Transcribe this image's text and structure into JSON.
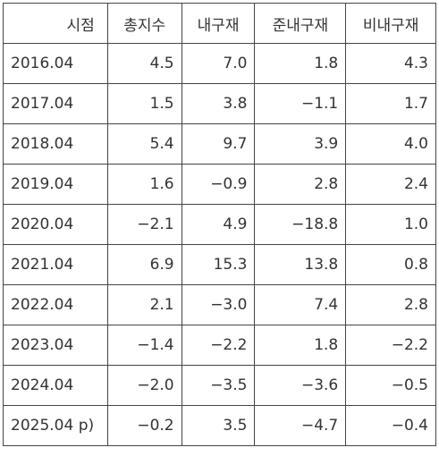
{
  "table": {
    "header": [
      "시점",
      "총지수",
      "내구재",
      "준내구재",
      "비내구재"
    ],
    "rows": [
      [
        "2016.04",
        "4.5",
        "7.0",
        "1.8",
        "4.3"
      ],
      [
        "2017.04",
        "1.5",
        "3.8",
        "−1.1",
        "1.7"
      ],
      [
        "2018.04",
        "5.4",
        "9.7",
        "3.9",
        "4.0"
      ],
      [
        "2019.04",
        "1.6",
        "−0.9",
        "2.8",
        "2.4"
      ],
      [
        "2020.04",
        "−2.1",
        "4.9",
        "−18.8",
        "1.0"
      ],
      [
        "2021.04",
        "6.9",
        "15.3",
        "13.8",
        "0.8"
      ],
      [
        "2022.04",
        "2.1",
        "−3.0",
        "7.4",
        "2.8"
      ],
      [
        "2023.04",
        "−1.4",
        "−2.2",
        "1.8",
        "−2.2"
      ],
      [
        "2024.04",
        "−2.0",
        "−3.5",
        "−3.6",
        "−0.5"
      ],
      [
        "2025.04 p)",
        "−0.2",
        "3.5",
        "−4.7",
        "−0.4"
      ]
    ]
  }
}
